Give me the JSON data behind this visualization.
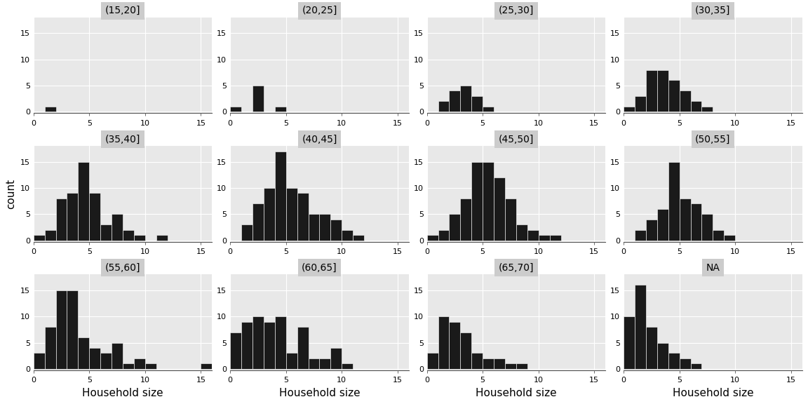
{
  "panels": [
    {
      "label": "(15,20]",
      "counts": [
        0,
        1,
        0,
        0,
        0,
        0,
        0,
        0,
        0,
        0,
        0,
        0,
        0,
        0,
        0,
        0
      ]
    },
    {
      "label": "(20,25]",
      "counts": [
        1,
        0,
        5,
        0,
        1,
        0,
        0,
        0,
        0,
        0,
        0,
        0,
        0,
        0,
        0,
        0
      ]
    },
    {
      "label": "(25,30]",
      "counts": [
        0,
        2,
        4,
        5,
        3,
        1,
        0,
        0,
        0,
        0,
        0,
        0,
        0,
        0,
        0,
        0
      ]
    },
    {
      "label": "(30,35]",
      "counts": [
        1,
        3,
        8,
        8,
        6,
        4,
        2,
        1,
        0,
        0,
        0,
        0,
        0,
        0,
        0,
        0
      ]
    },
    {
      "label": "(35,40]",
      "counts": [
        1,
        2,
        8,
        9,
        15,
        9,
        3,
        5,
        2,
        1,
        0,
        1,
        0,
        0,
        0,
        0
      ]
    },
    {
      "label": "(40,45]",
      "counts": [
        0,
        3,
        7,
        10,
        17,
        10,
        9,
        5,
        5,
        4,
        2,
        1,
        0,
        0,
        0,
        0
      ]
    },
    {
      "label": "(45,50]",
      "counts": [
        1,
        2,
        5,
        8,
        15,
        15,
        12,
        8,
        3,
        2,
        1,
        1,
        0,
        0,
        0,
        0
      ]
    },
    {
      "label": "(50,55]",
      "counts": [
        0,
        2,
        4,
        6,
        15,
        8,
        7,
        5,
        2,
        1,
        0,
        0,
        0,
        0,
        0,
        0
      ]
    },
    {
      "label": "(55,60]",
      "counts": [
        3,
        8,
        15,
        15,
        6,
        4,
        3,
        5,
        1,
        2,
        1,
        0,
        0,
        0,
        0,
        1
      ]
    },
    {
      "label": "(60,65]",
      "counts": [
        7,
        9,
        10,
        9,
        10,
        3,
        8,
        2,
        2,
        4,
        1,
        0,
        0,
        0,
        0,
        0
      ]
    },
    {
      "label": "(65,70]",
      "counts": [
        3,
        10,
        9,
        7,
        3,
        2,
        2,
        1,
        1,
        0,
        0,
        0,
        0,
        0,
        0,
        0
      ]
    },
    {
      "label": "NA",
      "counts": [
        10,
        16,
        8,
        5,
        3,
        2,
        1,
        0,
        0,
        0,
        0,
        0,
        0,
        0,
        0,
        0
      ]
    }
  ],
  "nrows": 3,
  "ncols": 4,
  "nbins": 16,
  "x_min": 0,
  "x_max": 16,
  "y_min": 0,
  "y_max": 18,
  "y_ticks": [
    0,
    5,
    10,
    15
  ],
  "x_ticks": [
    0,
    5,
    10,
    15
  ],
  "xlabel": "Household size",
  "ylabel": "count",
  "bar_color": "#1a1a1a",
  "panel_bg_color": "#e8e8e8",
  "strip_bg_color": "#cccccc",
  "fig_bg_color": "#ffffff",
  "grid_color": "#ffffff",
  "title_fontsize": 10,
  "axis_fontsize": 8,
  "label_fontsize": 11
}
